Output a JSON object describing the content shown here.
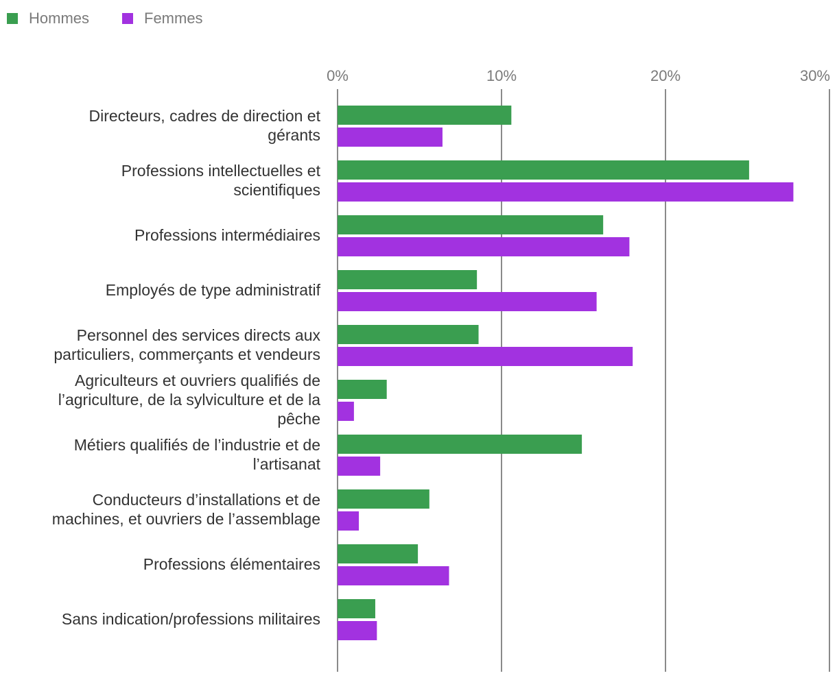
{
  "chart_data": {
    "type": "bar",
    "orientation": "horizontal",
    "title": "",
    "xlabel": "",
    "ylabel": "",
    "xlim": [
      0,
      30
    ],
    "x_ticks": [
      0,
      10,
      20,
      30
    ],
    "x_tick_labels": [
      "0%",
      "10%",
      "20%",
      "30%"
    ],
    "grid": true,
    "legend_position": "top-left",
    "categories": [
      [
        "Directeurs, cadres de direction et",
        "gérants"
      ],
      [
        "Professions intellectuelles et",
        "scientifiques"
      ],
      [
        "Professions intermédiaires"
      ],
      [
        "Employés de type administratif"
      ],
      [
        "Personnel des services directs aux",
        "particuliers, commerçants et vendeurs"
      ],
      [
        "Agriculteurs et ouvriers qualifiés de",
        "l’agriculture, de la sylviculture et de la",
        "pêche"
      ],
      [
        "Métiers qualifiés de l’industrie et de",
        "l’artisanat"
      ],
      [
        "Conducteurs d’installations et de",
        "machines, et ouvriers de l’assemblage"
      ],
      [
        "Professions élémentaires"
      ],
      [
        "Sans indication/professions militaires"
      ]
    ],
    "series": [
      {
        "name": "Hommes",
        "color": "#3a9e50",
        "values": [
          10.6,
          25.1,
          16.2,
          8.5,
          8.6,
          3.0,
          14.9,
          5.6,
          4.9,
          2.3
        ]
      },
      {
        "name": "Femmes",
        "color": "#a232e0",
        "values": [
          6.4,
          27.8,
          17.8,
          15.8,
          18.0,
          1.0,
          2.6,
          1.3,
          6.8,
          2.4
        ]
      }
    ]
  }
}
